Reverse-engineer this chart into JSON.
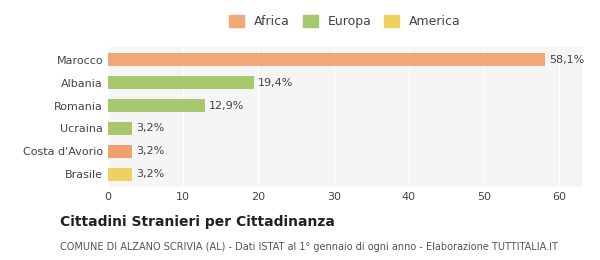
{
  "categories": [
    "Brasile",
    "Costa d'Avorio",
    "Ucraina",
    "Romania",
    "Albania",
    "Marocco"
  ],
  "values": [
    3.2,
    3.2,
    3.2,
    12.9,
    19.4,
    58.1
  ],
  "bar_colors": [
    "#f0d060",
    "#f0a070",
    "#a8c870",
    "#a8c870",
    "#a8c870",
    "#f0a878"
  ],
  "labels": [
    "3,2%",
    "3,2%",
    "3,2%",
    "12,9%",
    "19,4%",
    "58,1%"
  ],
  "legend_items": [
    {
      "label": "Africa",
      "color": "#f0a878"
    },
    {
      "label": "Europa",
      "color": "#a8c870"
    },
    {
      "label": "America",
      "color": "#f0d060"
    }
  ],
  "xlim": [
    0,
    63
  ],
  "xticks": [
    0,
    10,
    20,
    30,
    40,
    50,
    60
  ],
  "title_bold": "Cittadini Stranieri per Cittadinanza",
  "subtitle": "COMUNE DI ALZANO SCRIVIA (AL) - Dati ISTAT al 1° gennaio di ogni anno - Elaborazione TUTTITALIA.IT",
  "background_color": "#ffffff",
  "plot_bg_color": "#f5f5f5",
  "bar_height": 0.55,
  "label_fontsize": 8,
  "tick_fontsize": 8,
  "title_fontsize": 10,
  "subtitle_fontsize": 7,
  "legend_fontsize": 9
}
